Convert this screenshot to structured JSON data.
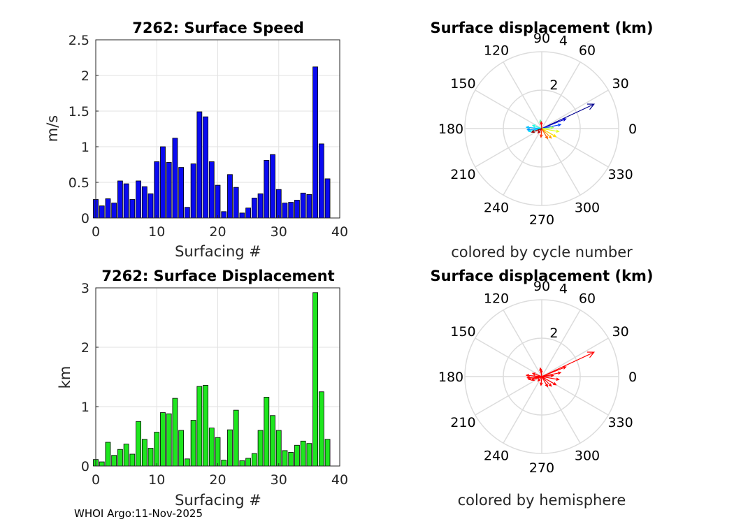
{
  "footer": "WHOI Argo:11-Nov-2025",
  "chart_data": [
    {
      "type": "bar",
      "title": "7262: Surface Speed",
      "xlabel": "Surfacing #",
      "ylabel": "m/s",
      "xlim": [
        0,
        40
      ],
      "ylim": [
        0,
        2.5
      ],
      "xticks": [
        0,
        10,
        20,
        30,
        40
      ],
      "xtick_labels": [
        "0",
        "10",
        "20",
        "30",
        "40"
      ],
      "yticks": [
        0,
        0.5,
        1,
        1.5,
        2,
        2.5
      ],
      "ytick_labels": [
        "0",
        "0.5",
        "1",
        "1.5",
        "2",
        "2.5"
      ],
      "bar_color": "#0a0af0",
      "x": [
        0,
        1,
        2,
        3,
        4,
        5,
        6,
        7,
        8,
        9,
        10,
        11,
        12,
        13,
        14,
        15,
        16,
        17,
        18,
        19,
        20,
        21,
        22,
        23,
        24,
        25,
        26,
        27,
        28,
        29,
        30,
        31,
        32,
        33,
        34,
        35,
        36,
        37,
        38
      ],
      "values": [
        0.26,
        0.17,
        0.27,
        0.21,
        0.52,
        0.48,
        0.26,
        0.52,
        0.44,
        0.34,
        0.79,
        1.0,
        0.78,
        1.12,
        0.71,
        0.15,
        0.76,
        1.49,
        1.42,
        0.79,
        0.46,
        0.09,
        0.61,
        0.43,
        0.07,
        0.14,
        0.28,
        0.34,
        0.81,
        0.89,
        0.4,
        0.21,
        0.22,
        0.25,
        0.35,
        0.33,
        2.12,
        1.04,
        0.55
      ]
    },
    {
      "type": "bar",
      "title": "7262: Surface Displacement",
      "xlabel": "Surfacing #",
      "ylabel": "km",
      "xlim": [
        0,
        40
      ],
      "ylim": [
        0,
        3
      ],
      "xticks": [
        0,
        10,
        20,
        30,
        40
      ],
      "xtick_labels": [
        "0",
        "10",
        "20",
        "30",
        "40"
      ],
      "yticks": [
        0,
        1,
        2,
        3
      ],
      "ytick_labels": [
        "0",
        "1",
        "2",
        "3"
      ],
      "bar_color": "#1ee61e",
      "x": [
        0,
        1,
        2,
        3,
        4,
        5,
        6,
        7,
        8,
        9,
        10,
        11,
        12,
        13,
        14,
        15,
        16,
        17,
        18,
        19,
        20,
        21,
        22,
        23,
        24,
        25,
        26,
        27,
        28,
        29,
        30,
        31,
        32,
        33,
        34,
        35,
        36,
        37,
        38
      ],
      "values": [
        0.11,
        0.07,
        0.4,
        0.18,
        0.28,
        0.37,
        0.2,
        0.75,
        0.45,
        0.3,
        0.57,
        0.9,
        0.88,
        1.14,
        0.6,
        0.12,
        0.77,
        1.34,
        1.36,
        0.64,
        0.48,
        0.1,
        0.61,
        0.94,
        0.09,
        0.13,
        0.21,
        0.6,
        1.16,
        0.85,
        0.6,
        0.26,
        0.23,
        0.35,
        0.42,
        0.38,
        2.92,
        1.25,
        0.45
      ]
    },
    {
      "type": "polar_quiver",
      "title": "Surface displacement (km)",
      "caption": "colored by cycle number",
      "rlim": [
        0,
        4
      ],
      "rticks": [
        2,
        4
      ],
      "rtick_labels": [
        "2",
        "4"
      ],
      "theta_ticks": [
        0,
        30,
        60,
        90,
        120,
        150,
        180,
        210,
        240,
        270,
        300,
        330
      ],
      "theta_labels": [
        "0",
        "30",
        "60",
        "90",
        "120",
        "150",
        "180",
        "210",
        "240",
        "270",
        "300",
        "330"
      ],
      "vectors": [
        {
          "r": 3.0,
          "theta": 25,
          "color": "#00008f"
        },
        {
          "r": 1.35,
          "theta": 22,
          "color": "#0000cf"
        },
        {
          "r": 1.0,
          "theta": 12,
          "color": "#0040ff"
        },
        {
          "r": 0.75,
          "theta": 185,
          "color": "#0090ff"
        },
        {
          "r": 0.8,
          "theta": 175,
          "color": "#00c0ff"
        },
        {
          "r": 0.7,
          "theta": 192,
          "color": "#00e0ff"
        },
        {
          "r": 0.5,
          "theta": 160,
          "color": "#20ffe0"
        },
        {
          "r": 0.45,
          "theta": 100,
          "color": "#60ff a0"
        },
        {
          "r": 0.6,
          "theta": 5,
          "color": "#a0ff60"
        },
        {
          "r": 0.9,
          "theta": 350,
          "color": "#e0ff20"
        },
        {
          "r": 0.85,
          "theta": 330,
          "color": "#ffe000"
        },
        {
          "r": 0.7,
          "theta": 315,
          "color": "#ffa000"
        },
        {
          "r": 0.6,
          "theta": 300,
          "color": "#ff6000"
        },
        {
          "r": 0.45,
          "theta": 265,
          "color": "#ff3000"
        },
        {
          "r": 0.35,
          "theta": 95,
          "color": "#ff0000"
        },
        {
          "r": 0.3,
          "theta": 230,
          "color": "#c00000"
        },
        {
          "r": 0.55,
          "theta": 200,
          "color": "#8f0000"
        }
      ]
    },
    {
      "type": "polar_quiver",
      "title": "Surface displacement (km)",
      "caption": "colored by hemisphere",
      "rlim": [
        0,
        4
      ],
      "rticks": [
        2,
        4
      ],
      "rtick_labels": [
        "2",
        "4"
      ],
      "theta_ticks": [
        0,
        30,
        60,
        90,
        120,
        150,
        180,
        210,
        240,
        270,
        300,
        330
      ],
      "theta_labels": [
        "0",
        "30",
        "60",
        "90",
        "120",
        "150",
        "180",
        "210",
        "240",
        "270",
        "300",
        "330"
      ],
      "vector_color": "#ff0000",
      "vectors": [
        {
          "r": 3.0,
          "theta": 25
        },
        {
          "r": 1.35,
          "theta": 22
        },
        {
          "r": 1.0,
          "theta": 12
        },
        {
          "r": 0.75,
          "theta": 185
        },
        {
          "r": 0.8,
          "theta": 175
        },
        {
          "r": 0.7,
          "theta": 192
        },
        {
          "r": 0.5,
          "theta": 160
        },
        {
          "r": 0.45,
          "theta": 100
        },
        {
          "r": 0.6,
          "theta": 5
        },
        {
          "r": 0.9,
          "theta": 350
        },
        {
          "r": 0.85,
          "theta": 330
        },
        {
          "r": 0.7,
          "theta": 315
        },
        {
          "r": 0.6,
          "theta": 300
        },
        {
          "r": 0.45,
          "theta": 265
        },
        {
          "r": 0.35,
          "theta": 95
        },
        {
          "r": 0.3,
          "theta": 230
        },
        {
          "r": 0.55,
          "theta": 200
        }
      ]
    }
  ]
}
